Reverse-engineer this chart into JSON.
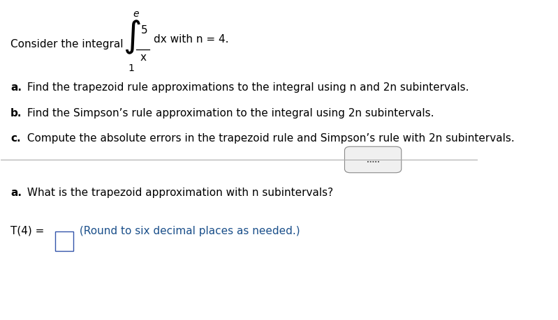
{
  "bg_color": "#ffffff",
  "text_color_black": "#000000",
  "text_color_blue": "#1a4f8a",
  "fig_width": 7.99,
  "fig_height": 4.6,
  "dpi": 100,
  "line1_label": "Consider the integral",
  "integral_upper": "e",
  "integral_num": "5",
  "integral_var": "x",
  "integral_dx": "dx with n = 4.",
  "integral_lower": "1",
  "item_a": "a.",
  "item_a_text": " Find the trapezoid rule approximations to the integral using n and 2n subintervals.",
  "item_b": "b.",
  "item_b_text": " Find the Simpson’s rule approximation to the integral using 2n subintervals.",
  "item_c": "c.",
  "item_c_text": " Compute the absolute errors in the trapezoid rule and Simpson’s rule with 2n subintervals.",
  "question_a_bold": "a.",
  "question_a_text": " What is the trapezoid approximation with n subintervals?",
  "t4_label": "T(4) = ",
  "t4_answer_text": " (Round to six decimal places as needed.)",
  "dots": ".....",
  "font_size_main": 11,
  "font_size_small": 10
}
